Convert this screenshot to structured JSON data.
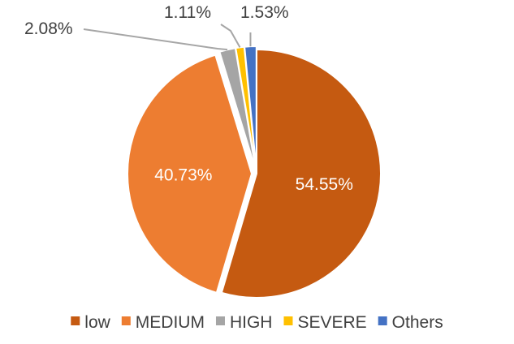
{
  "chart_data": {
    "type": "pie",
    "title": "",
    "slices": [
      {
        "label": "low",
        "value": 54.55,
        "display": "54.55%",
        "color": "#c55a11"
      },
      {
        "label": "MEDIUM",
        "value": 40.73,
        "display": "40.73%",
        "color": "#ed7d31"
      },
      {
        "label": "HIGH",
        "value": 2.08,
        "display": "2.08%",
        "color": "#a5a5a5"
      },
      {
        "label": "SEVERE",
        "value": 1.11,
        "display": "1.11%",
        "color": "#ffc000"
      },
      {
        "label": "Others",
        "value": 1.53,
        "display": "1.53%",
        "color": "#4472c4"
      }
    ],
    "legend_position": "bottom",
    "data_labels": true
  }
}
